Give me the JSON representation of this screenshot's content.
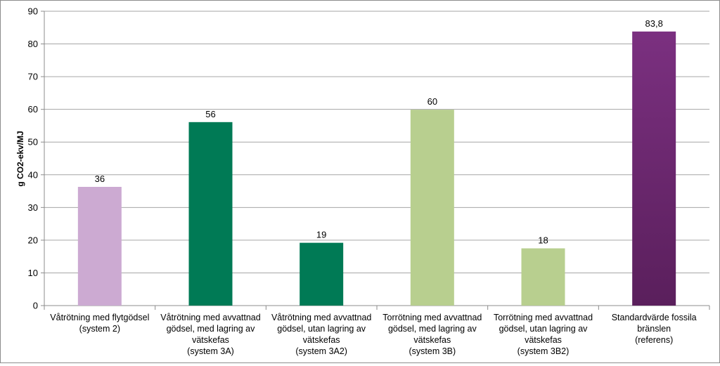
{
  "chart_data": {
    "type": "bar",
    "title": "",
    "xlabel": "",
    "ylabel": "g CO2-ekv/MJ",
    "ylim": [
      0,
      90
    ],
    "yticks": [
      0,
      10,
      20,
      30,
      40,
      50,
      60,
      70,
      80,
      90
    ],
    "grid": true,
    "legend": "none",
    "categories": [
      [
        "Våtrötning med flytgödsel",
        "(system 2)"
      ],
      [
        "Våtrötning med avvattnad",
        "gödsel, med lagring av",
        "vätskefas",
        "(system 3A)"
      ],
      [
        "Våtrötning med avvattnad",
        "gödsel, utan lagring av",
        "vätskefas",
        "(system 3A2)"
      ],
      [
        "Torrötning med avvattnad",
        "gödsel, med lagring av",
        "vätskefas",
        "(system 3B)"
      ],
      [
        "Torrötning med avvattnad",
        "gödsel, utan lagring av",
        "vätskefas",
        "(system 3B2)"
      ],
      [
        "Standardvärde fossila",
        "bränslen",
        "(referens)"
      ]
    ],
    "values": [
      36.3,
      56.1,
      19.2,
      59.9,
      17.5,
      83.8
    ],
    "data_labels": [
      "36",
      "56",
      "19",
      "60",
      "18",
      "83,8"
    ],
    "colors": [
      "#ccaad2",
      "#007a55",
      "#007a55",
      "#b8cf8f",
      "#b8cf8f",
      "purple-gradient"
    ],
    "gradient": {
      "top": "#7b3080",
      "bottom": "#5a1f5c"
    }
  }
}
